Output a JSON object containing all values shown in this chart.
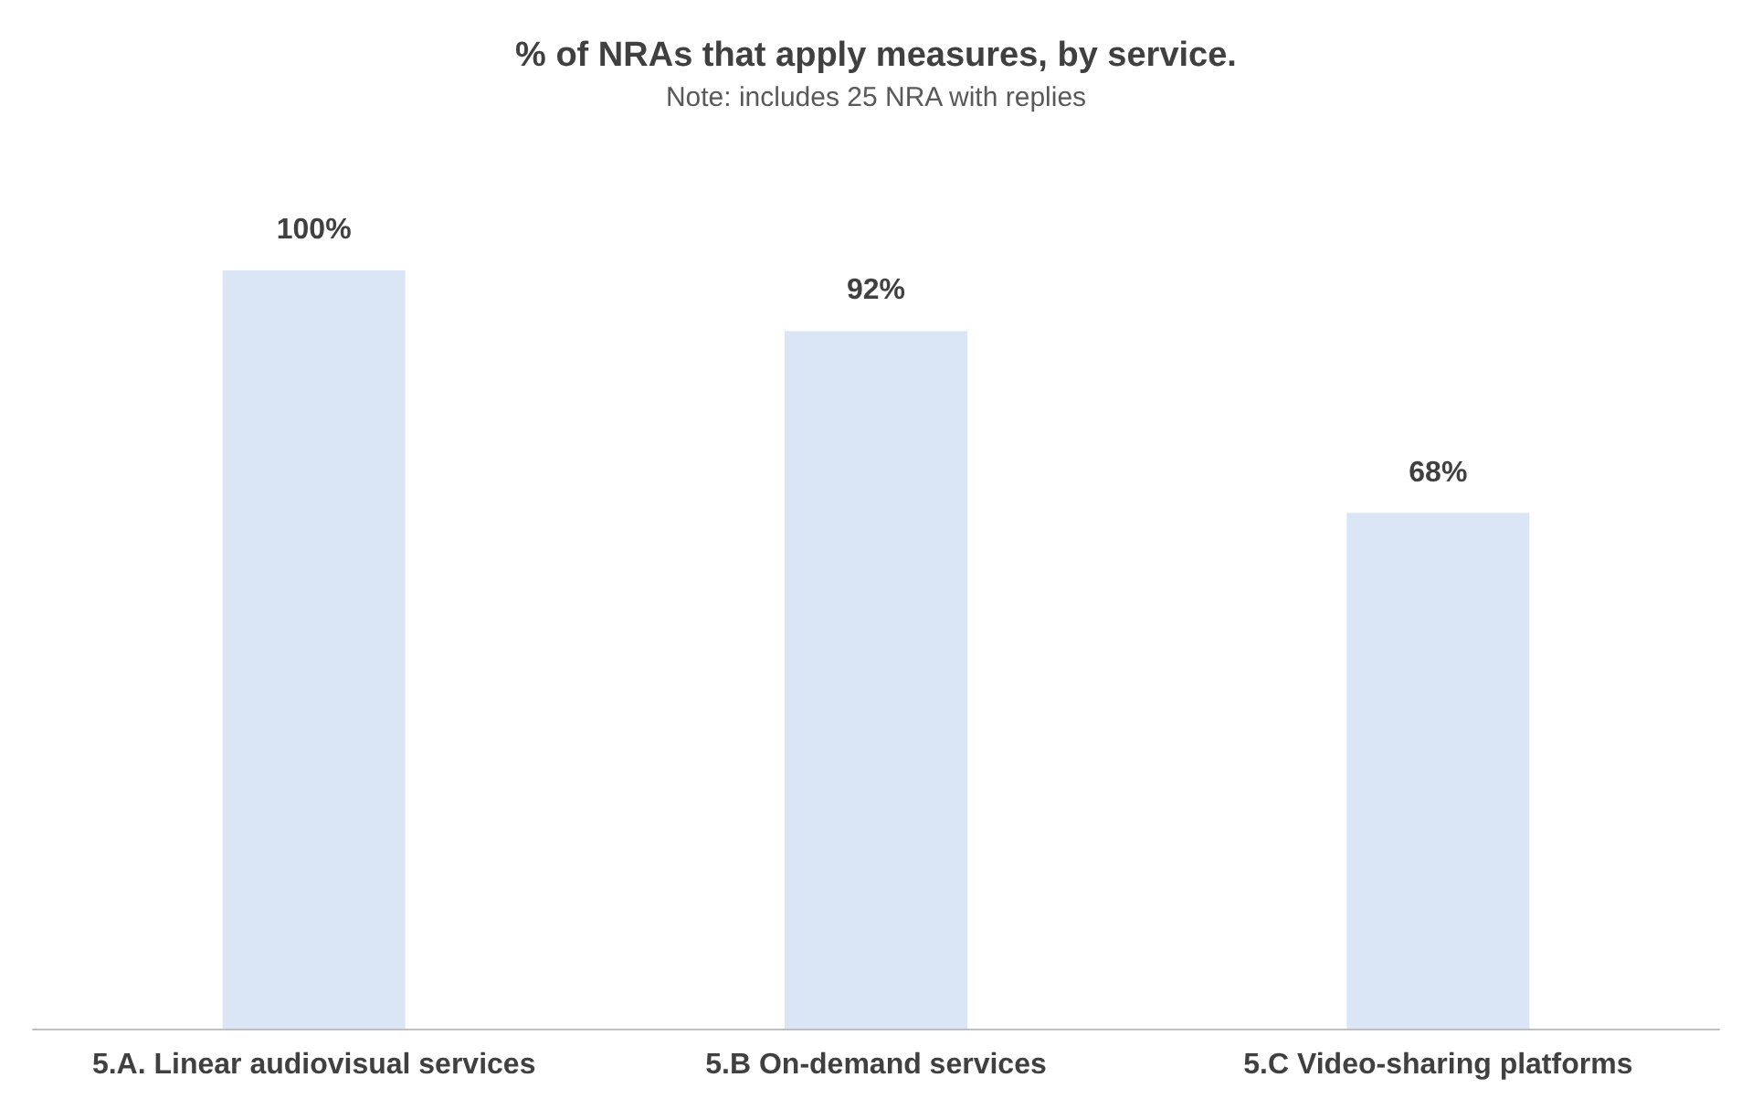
{
  "chart_data": {
    "type": "bar",
    "title": "% of NRAs that apply measures, by service.",
    "subtitle": "Note: includes 25 NRA with replies",
    "categories": [
      "5.A. Linear audiovisual services",
      "5.B On-demand services",
      "5.C Video-sharing platforms"
    ],
    "values": [
      100,
      92,
      68
    ],
    "value_labels": [
      "100%",
      "92%",
      "68%"
    ],
    "color": "#dae6f5"
  }
}
